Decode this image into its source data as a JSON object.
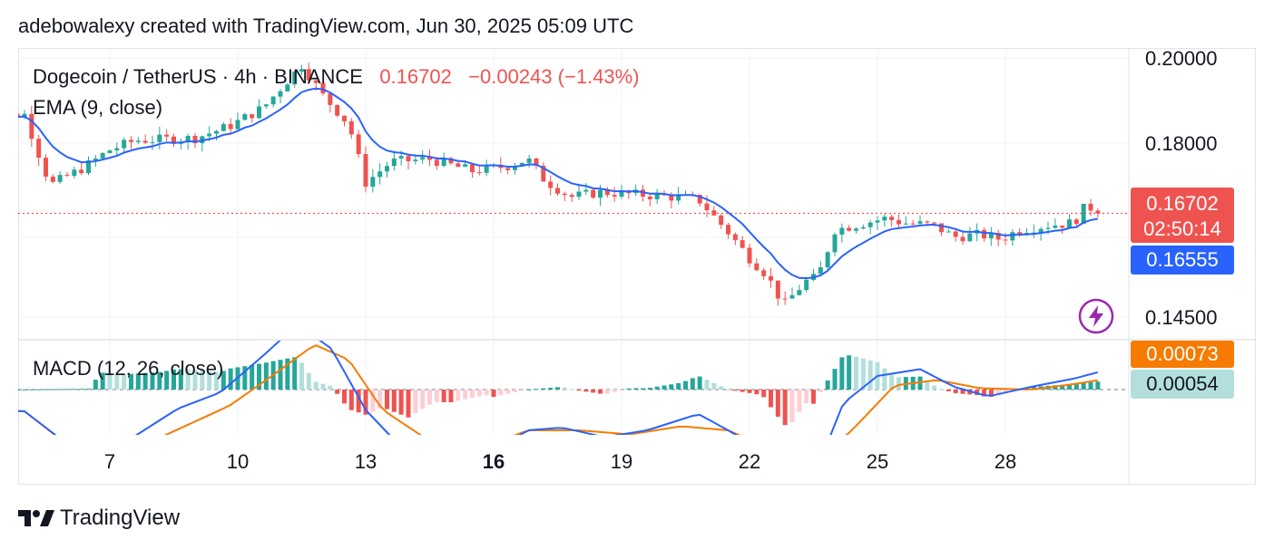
{
  "header": {
    "text": "adebowalexy created with TradingView.com, Jun 30, 2025 05:09 UTC"
  },
  "legend": {
    "symbol": "Dogecoin / TetherUS · 4h · BINANCE",
    "last": "0.16702",
    "change": "−0.00243 (−1.43%)",
    "ema_label": "EMA (9, close)",
    "macd_label": "MACD (12, 26, close)"
  },
  "price_axis": {
    "labels": [
      "0.20000",
      "0.18000",
      "0.14500"
    ]
  },
  "tags": {
    "price": "0.16702",
    "countdown": "02:50:14",
    "ema": "0.16555",
    "macd_signal": "0.00073",
    "macd_hist": "0.00054"
  },
  "x_axis": {
    "labels": [
      "7",
      "10",
      "13",
      "16",
      "19",
      "22",
      "25",
      "28"
    ],
    "bold": "16"
  },
  "footer": {
    "brand": "TradingView"
  },
  "colors": {
    "up": "#26a69a",
    "down": "#ef5350",
    "ema": "#2962ff",
    "macd": "#2962ff",
    "signal": "#f57c00",
    "hist_up_strong": "#26a69a",
    "hist_up_weak": "#b2dfdb",
    "hist_down_strong": "#ef5350",
    "hist_down_weak": "#ffcdd2",
    "ema_tag": "#2962ff",
    "signal_tag": "#f57c00",
    "hist_tag": "#b2dfdb"
  },
  "chart_data": [
    {
      "type": "candlestick",
      "title": "Dogecoin / TetherUS · 4h · BINANCE",
      "ylim": [
        0.14,
        0.202
      ],
      "x_ticks": [
        {
          "label": "7",
          "day": 7
        },
        {
          "label": "10",
          "day": 10
        },
        {
          "label": "13",
          "day": 13
        },
        {
          "label": "16",
          "day": 16
        },
        {
          "label": "19",
          "day": 19
        },
        {
          "label": "22",
          "day": 22
        },
        {
          "label": "25",
          "day": 25
        },
        {
          "label": "28",
          "day": 28
        }
      ],
      "close_waypoints": [
        [
          4.0,
          0.1875
        ],
        [
          5.0,
          0.188
        ],
        [
          5.6,
          0.173
        ],
        [
          6.4,
          0.1768
        ],
        [
          7.0,
          0.1805
        ],
        [
          7.6,
          0.1825
        ],
        [
          9.0,
          0.183
        ],
        [
          9.8,
          0.1855
        ],
        [
          10.6,
          0.1895
        ],
        [
          11.1,
          0.1945
        ],
        [
          11.5,
          0.1985
        ],
        [
          12.0,
          0.192
        ],
        [
          12.6,
          0.186
        ],
        [
          13.0,
          0.1735
        ],
        [
          13.6,
          0.178
        ],
        [
          14.5,
          0.1785
        ],
        [
          15.5,
          0.176
        ],
        [
          16.3,
          0.177
        ],
        [
          16.8,
          0.1785
        ],
        [
          17.2,
          0.174
        ],
        [
          17.8,
          0.1705
        ],
        [
          18.5,
          0.1715
        ],
        [
          19.4,
          0.171
        ],
        [
          20.2,
          0.1705
        ],
        [
          20.8,
          0.17
        ],
        [
          21.5,
          0.163
        ],
        [
          22.0,
          0.1575
        ],
        [
          22.4,
          0.154
        ],
        [
          22.8,
          0.1475
        ],
        [
          23.3,
          0.1525
        ],
        [
          23.6,
          0.1535
        ],
        [
          24.0,
          0.1635
        ],
        [
          24.6,
          0.1648
        ],
        [
          25.2,
          0.166
        ],
        [
          25.6,
          0.165
        ],
        [
          26.3,
          0.1645
        ],
        [
          26.8,
          0.162
        ],
        [
          27.4,
          0.1625
        ],
        [
          27.9,
          0.1615
        ],
        [
          28.3,
          0.1635
        ],
        [
          29.0,
          0.1645
        ],
        [
          29.6,
          0.165
        ],
        [
          29.9,
          0.1688
        ],
        [
          30.2,
          0.167
        ]
      ],
      "last": 0.16702,
      "change": -0.00243,
      "change_pct": -1.43
    },
    {
      "type": "line",
      "name": "EMA (9, close)",
      "last": 0.16555
    },
    {
      "type": "histogram",
      "name": "MACD (12, 26, close)",
      "macd_waypoints": [
        [
          4.0,
          -0.0015
        ],
        [
          5.0,
          -0.0016
        ],
        [
          6.5,
          -0.0052
        ],
        [
          7.3,
          -0.004
        ],
        [
          8.6,
          -0.0014
        ],
        [
          9.6,
          -0.0002
        ],
        [
          10.6,
          0.0025
        ],
        [
          11.4,
          0.0048
        ],
        [
          12.2,
          0.003
        ],
        [
          13.0,
          -0.0015
        ],
        [
          14.0,
          -0.0048
        ],
        [
          15.0,
          -0.005
        ],
        [
          16.0,
          -0.0045
        ],
        [
          16.8,
          -0.003
        ],
        [
          17.6,
          -0.0028
        ],
        [
          18.6,
          -0.0035
        ],
        [
          19.6,
          -0.003
        ],
        [
          20.8,
          -0.0018
        ],
        [
          21.5,
          -0.003
        ],
        [
          22.3,
          -0.0045
        ],
        [
          22.9,
          -0.008
        ],
        [
          23.5,
          -0.0065
        ],
        [
          24.2,
          -0.001
        ],
        [
          25.0,
          0.001
        ],
        [
          26.0,
          0.0015
        ],
        [
          26.8,
          0.0002
        ],
        [
          27.6,
          -0.0005
        ],
        [
          28.6,
          0.0002
        ],
        [
          29.6,
          0.0008
        ],
        [
          30.2,
          0.0013
        ]
      ],
      "signal_waypoints": [
        [
          4.0,
          -0.0015
        ],
        [
          5.0,
          -0.0016
        ],
        [
          6.8,
          -0.006
        ],
        [
          8.2,
          -0.0035
        ],
        [
          9.8,
          -0.0012
        ],
        [
          10.8,
          0.001
        ],
        [
          11.8,
          0.0033
        ],
        [
          12.6,
          0.0022
        ],
        [
          13.4,
          -0.0015
        ],
        [
          14.6,
          -0.004
        ],
        [
          15.8,
          -0.0042
        ],
        [
          16.8,
          -0.003
        ],
        [
          18.0,
          -0.003
        ],
        [
          19.2,
          -0.0033
        ],
        [
          20.4,
          -0.0027
        ],
        [
          21.5,
          -0.003
        ],
        [
          22.6,
          -0.0045
        ],
        [
          23.3,
          -0.006
        ],
        [
          24.4,
          -0.003
        ],
        [
          25.4,
          0.0003
        ],
        [
          26.4,
          0.0007
        ],
        [
          27.4,
          0.0001
        ],
        [
          28.6,
          0.0
        ],
        [
          29.6,
          0.0004
        ],
        [
          30.2,
          0.0007
        ]
      ],
      "last_macd": 0.00073,
      "last_hist": 0.00054
    }
  ]
}
